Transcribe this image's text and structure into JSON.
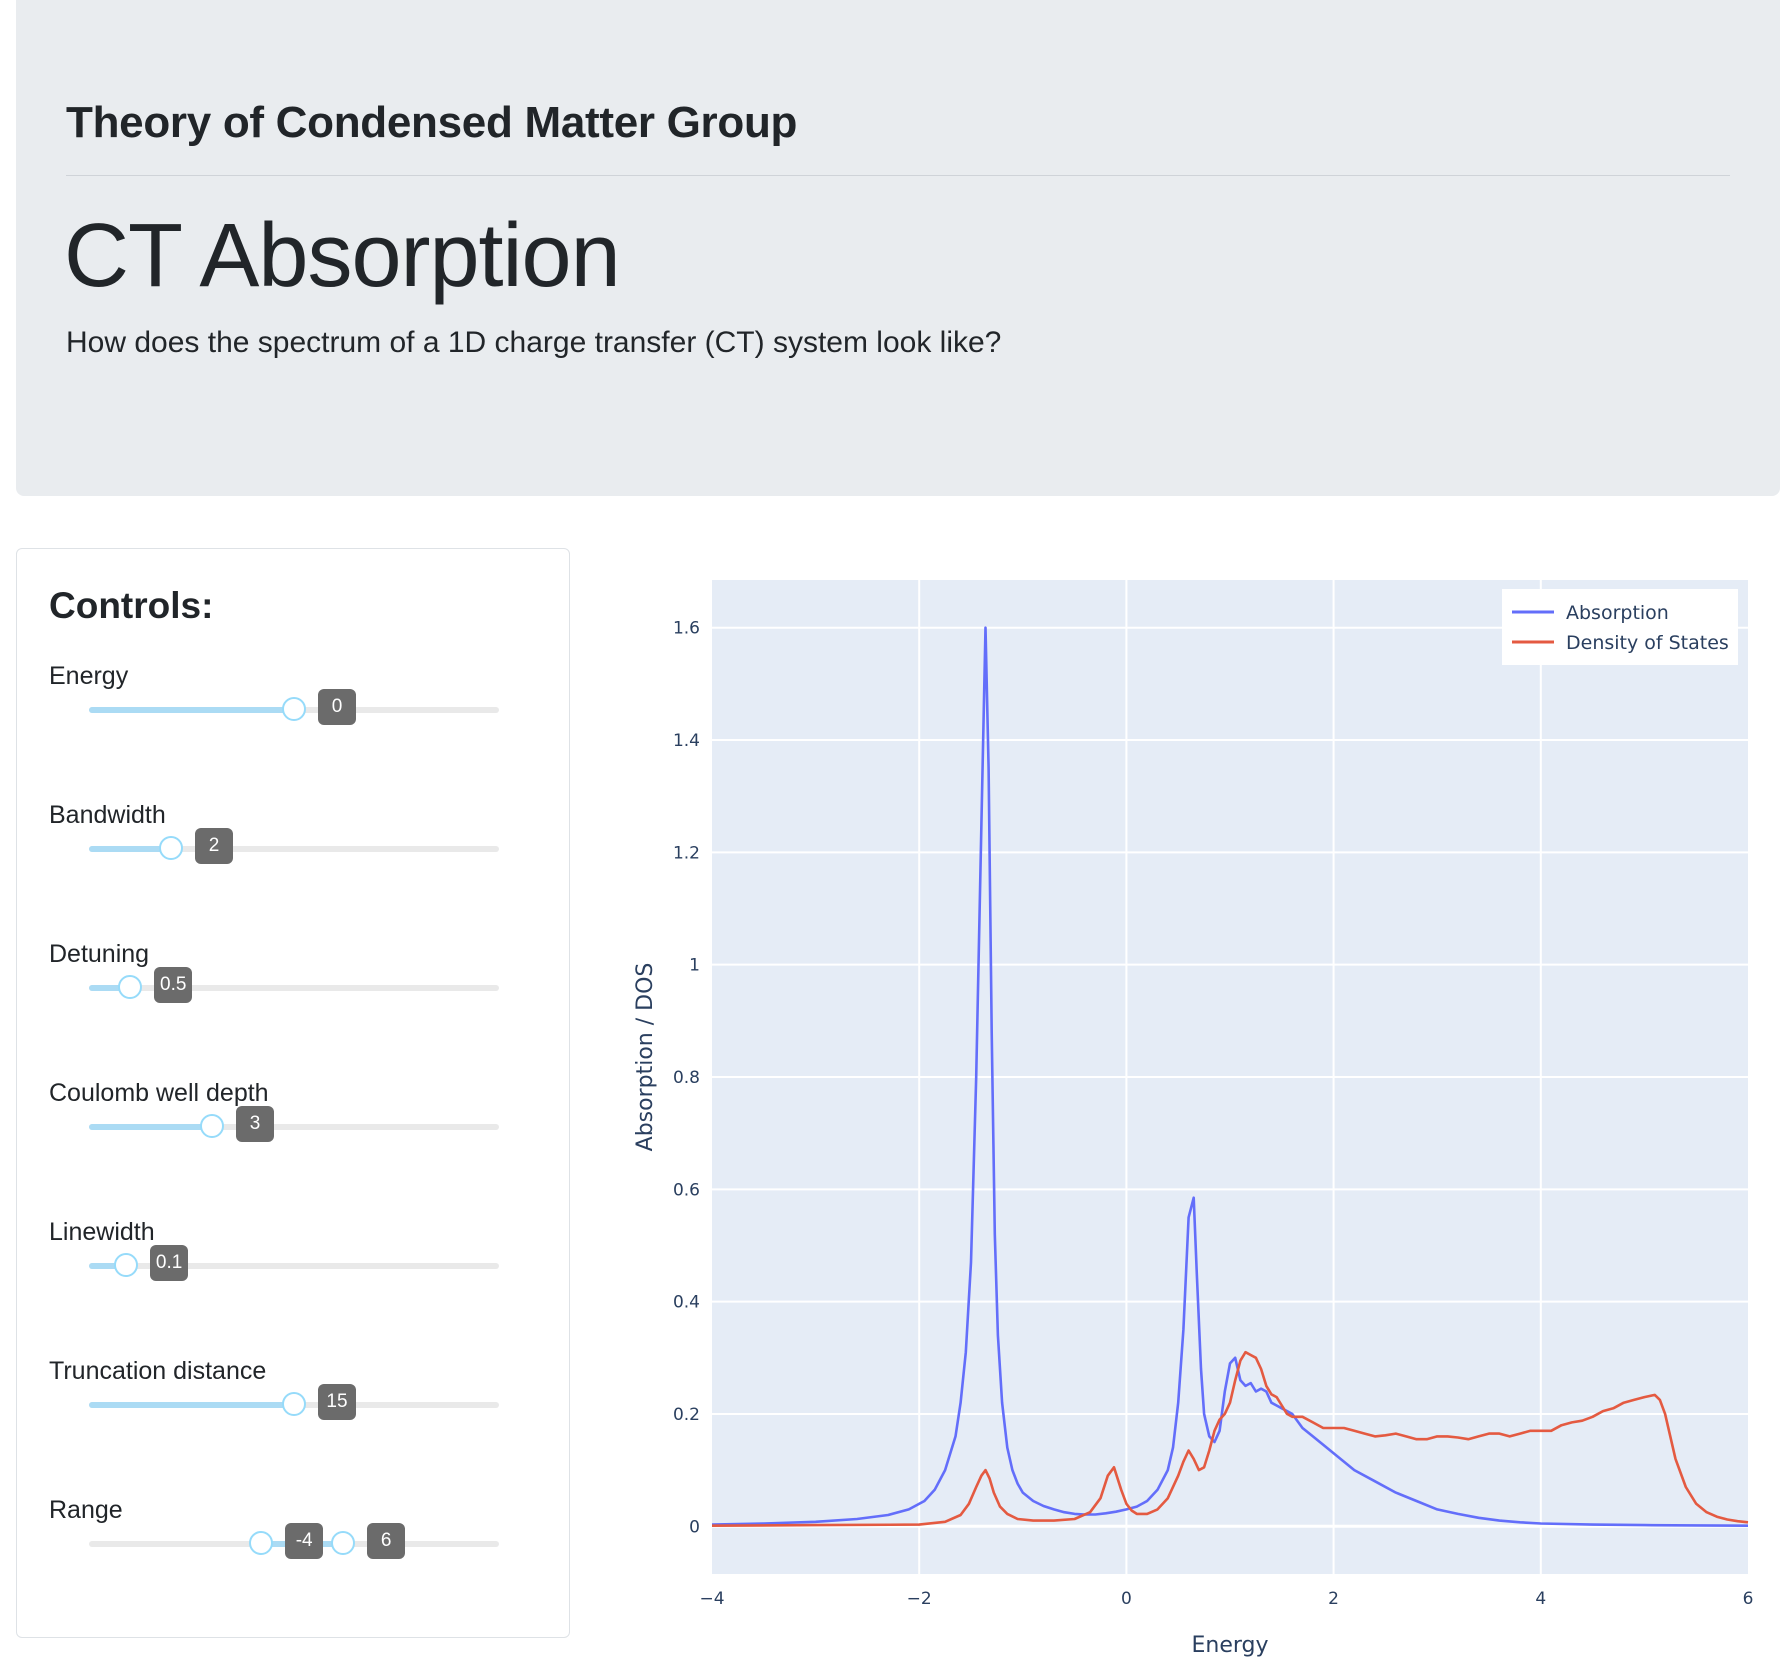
{
  "header": {
    "group_title": "Theory of Condensed Matter Group",
    "title": "CT Absorption",
    "lead": "How does the spectrum of a 1D charge transfer (CT) system look like?"
  },
  "controls": {
    "title": "Controls:",
    "sliders": [
      {
        "label": "Energy",
        "value": "0",
        "fraction": 0.5
      },
      {
        "label": "Bandwidth",
        "value": "2",
        "fraction": 0.2
      },
      {
        "label": "Detuning",
        "value": "0.5",
        "fraction": 0.1
      },
      {
        "label": "Coulomb well depth",
        "value": "3",
        "fraction": 0.3
      },
      {
        "label": "Linewidth",
        "value": "0.1",
        "fraction": 0.09
      },
      {
        "label": "Truncation distance",
        "value": "15",
        "fraction": 0.5
      }
    ],
    "range": {
      "label": "Range",
      "low_value": "-4",
      "high_value": "6",
      "low_fraction": 0.42,
      "high_fraction": 0.62
    }
  },
  "chart_data": {
    "type": "line",
    "title": "",
    "xlabel": "Energy",
    "ylabel": "Absorption / DOS",
    "xlim": [
      -4,
      6
    ],
    "ylim": [
      -0.085,
      1.685
    ],
    "xticks": [
      -4,
      -2,
      0,
      2,
      4,
      6
    ],
    "xtick_labels": [
      "−4",
      "−2",
      "0",
      "2",
      "4",
      "6"
    ],
    "yticks": [
      0,
      0.2,
      0.4,
      0.6,
      0.8,
      1,
      1.2,
      1.4,
      1.6
    ],
    "ytick_labels": [
      "0",
      "0.2",
      "0.4",
      "0.6",
      "0.8",
      "1",
      "1.2",
      "1.4",
      "1.6"
    ],
    "grid": true,
    "legend_position": "top-right",
    "colors": {
      "plot_bg": "#e5ecf6",
      "grid": "#ffffff",
      "axis_text": "#2a3f5f"
    },
    "series": [
      {
        "name": "Absorption",
        "color": "#636efa",
        "x": [
          -4,
          -3.5,
          -3,
          -2.6,
          -2.3,
          -2.1,
          -1.95,
          -1.85,
          -1.75,
          -1.65,
          -1.6,
          -1.55,
          -1.5,
          -1.45,
          -1.4,
          -1.36,
          -1.33,
          -1.3,
          -1.27,
          -1.24,
          -1.2,
          -1.15,
          -1.1,
          -1.05,
          -1.0,
          -0.9,
          -0.8,
          -0.7,
          -0.6,
          -0.5,
          -0.4,
          -0.3,
          -0.2,
          -0.1,
          0,
          0.1,
          0.2,
          0.3,
          0.4,
          0.45,
          0.5,
          0.55,
          0.6,
          0.65,
          0.68,
          0.72,
          0.75,
          0.8,
          0.85,
          0.9,
          0.95,
          1.0,
          1.05,
          1.1,
          1.15,
          1.2,
          1.25,
          1.3,
          1.35,
          1.4,
          1.45,
          1.5,
          1.6,
          1.7,
          1.8,
          1.9,
          2.0,
          2.2,
          2.4,
          2.6,
          2.8,
          3.0,
          3.2,
          3.4,
          3.6,
          3.8,
          4.0,
          4.5,
          5.0,
          5.5,
          6.0
        ],
        "y": [
          0.003,
          0.005,
          0.008,
          0.013,
          0.02,
          0.03,
          0.045,
          0.065,
          0.1,
          0.16,
          0.22,
          0.31,
          0.47,
          0.8,
          1.25,
          1.6,
          1.35,
          0.88,
          0.52,
          0.34,
          0.22,
          0.14,
          0.1,
          0.076,
          0.06,
          0.045,
          0.036,
          0.03,
          0.025,
          0.022,
          0.021,
          0.021,
          0.023,
          0.026,
          0.03,
          0.035,
          0.045,
          0.065,
          0.1,
          0.14,
          0.22,
          0.35,
          0.55,
          0.585,
          0.45,
          0.28,
          0.2,
          0.16,
          0.15,
          0.17,
          0.24,
          0.29,
          0.3,
          0.26,
          0.25,
          0.255,
          0.24,
          0.245,
          0.24,
          0.22,
          0.215,
          0.21,
          0.2,
          0.175,
          0.16,
          0.145,
          0.13,
          0.1,
          0.08,
          0.06,
          0.045,
          0.03,
          0.022,
          0.015,
          0.01,
          0.007,
          0.005,
          0.003,
          0.002,
          0.0015,
          0.001
        ]
      },
      {
        "name": "Density of States",
        "color": "#e45a41",
        "x": [
          -4,
          -3.0,
          -2.0,
          -1.75,
          -1.6,
          -1.52,
          -1.45,
          -1.4,
          -1.36,
          -1.32,
          -1.28,
          -1.22,
          -1.15,
          -1.05,
          -0.9,
          -0.7,
          -0.5,
          -0.35,
          -0.25,
          -0.18,
          -0.12,
          -0.05,
          0,
          0.05,
          0.1,
          0.2,
          0.3,
          0.4,
          0.5,
          0.55,
          0.6,
          0.65,
          0.7,
          0.75,
          0.8,
          0.85,
          0.9,
          0.95,
          1.0,
          1.05,
          1.1,
          1.15,
          1.2,
          1.25,
          1.3,
          1.35,
          1.4,
          1.45,
          1.5,
          1.55,
          1.6,
          1.7,
          1.8,
          1.9,
          2.0,
          2.1,
          2.2,
          2.3,
          2.4,
          2.5,
          2.6,
          2.7,
          2.8,
          2.9,
          3.0,
          3.1,
          3.2,
          3.3,
          3.4,
          3.5,
          3.6,
          3.7,
          3.8,
          3.9,
          4.0,
          4.1,
          4.2,
          4.3,
          4.4,
          4.5,
          4.6,
          4.7,
          4.8,
          4.9,
          5.0,
          5.05,
          5.1,
          5.15,
          5.2,
          5.25,
          5.3,
          5.4,
          5.5,
          5.6,
          5.7,
          5.8,
          5.9,
          6.0
        ],
        "y": [
          0.001,
          0.002,
          0.003,
          0.008,
          0.02,
          0.04,
          0.07,
          0.09,
          0.1,
          0.085,
          0.06,
          0.035,
          0.022,
          0.013,
          0.01,
          0.01,
          0.013,
          0.025,
          0.05,
          0.09,
          0.105,
          0.065,
          0.04,
          0.028,
          0.022,
          0.022,
          0.03,
          0.05,
          0.09,
          0.115,
          0.135,
          0.12,
          0.1,
          0.105,
          0.135,
          0.17,
          0.19,
          0.2,
          0.22,
          0.26,
          0.295,
          0.31,
          0.305,
          0.3,
          0.28,
          0.25,
          0.235,
          0.23,
          0.215,
          0.2,
          0.195,
          0.195,
          0.185,
          0.175,
          0.175,
          0.175,
          0.17,
          0.165,
          0.16,
          0.162,
          0.165,
          0.16,
          0.155,
          0.155,
          0.16,
          0.16,
          0.158,
          0.155,
          0.16,
          0.165,
          0.165,
          0.16,
          0.165,
          0.17,
          0.17,
          0.17,
          0.18,
          0.185,
          0.188,
          0.195,
          0.205,
          0.21,
          0.22,
          0.225,
          0.23,
          0.232,
          0.234,
          0.225,
          0.2,
          0.16,
          0.12,
          0.07,
          0.04,
          0.025,
          0.017,
          0.012,
          0.009,
          0.007
        ]
      }
    ]
  }
}
